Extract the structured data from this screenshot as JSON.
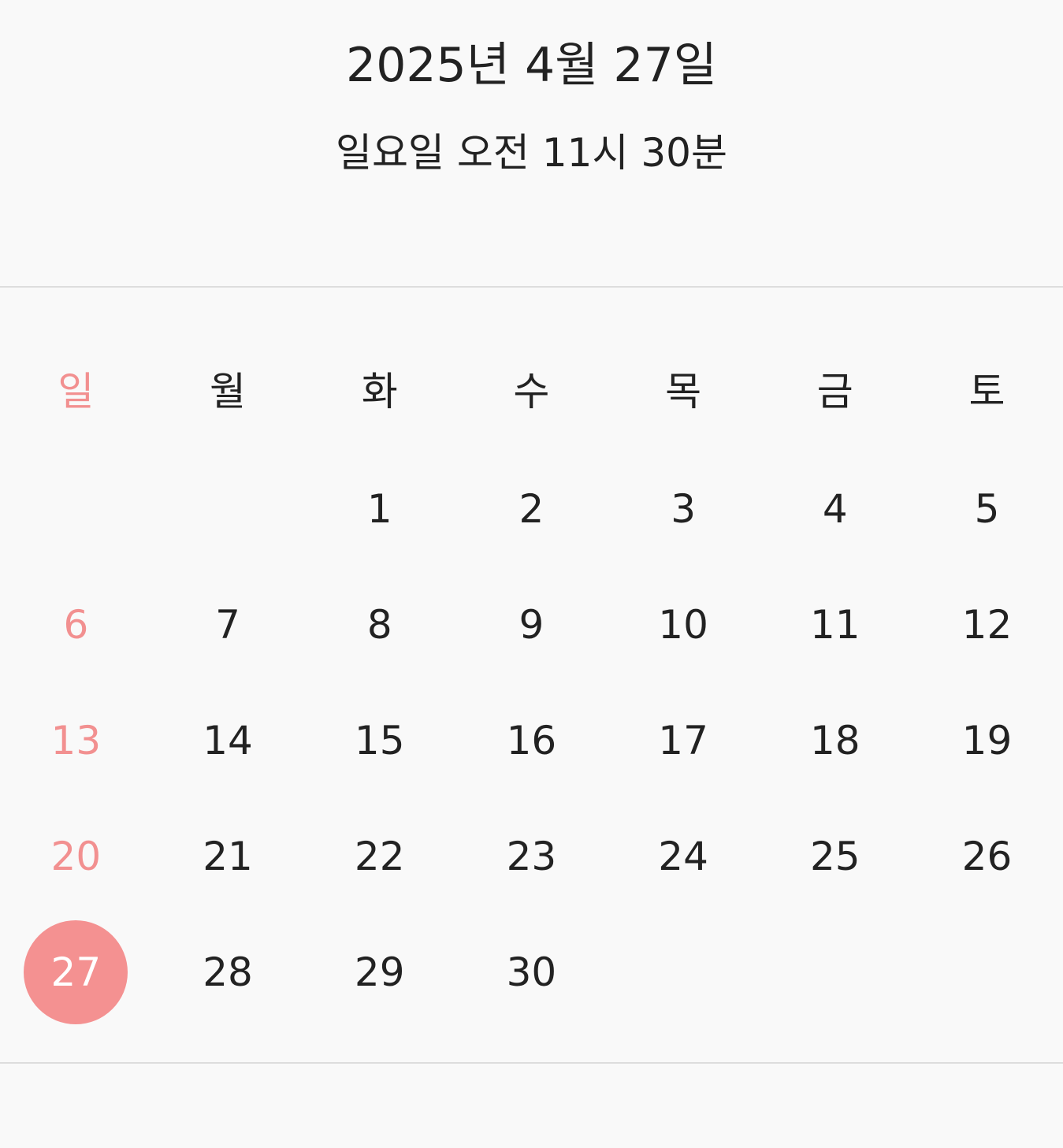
{
  "header": {
    "date": "2025년 4월 27일",
    "time": "일요일 오전 11시 30분"
  },
  "calendar": {
    "weekdays": [
      "일",
      "월",
      "화",
      "수",
      "목",
      "금",
      "토"
    ],
    "weeks": [
      [
        "",
        "",
        "1",
        "2",
        "3",
        "4",
        "5"
      ],
      [
        "6",
        "7",
        "8",
        "9",
        "10",
        "11",
        "12"
      ],
      [
        "13",
        "14",
        "15",
        "16",
        "17",
        "18",
        "19"
      ],
      [
        "20",
        "21",
        "22",
        "23",
        "24",
        "25",
        "26"
      ],
      [
        "27",
        "28",
        "29",
        "30",
        "",
        "",
        ""
      ]
    ],
    "today": "27"
  },
  "colors": {
    "background": "#f9f9f9",
    "text": "#222222",
    "sunday": "#f29090",
    "today_highlight": "#f49191",
    "divider": "#dddddd"
  }
}
